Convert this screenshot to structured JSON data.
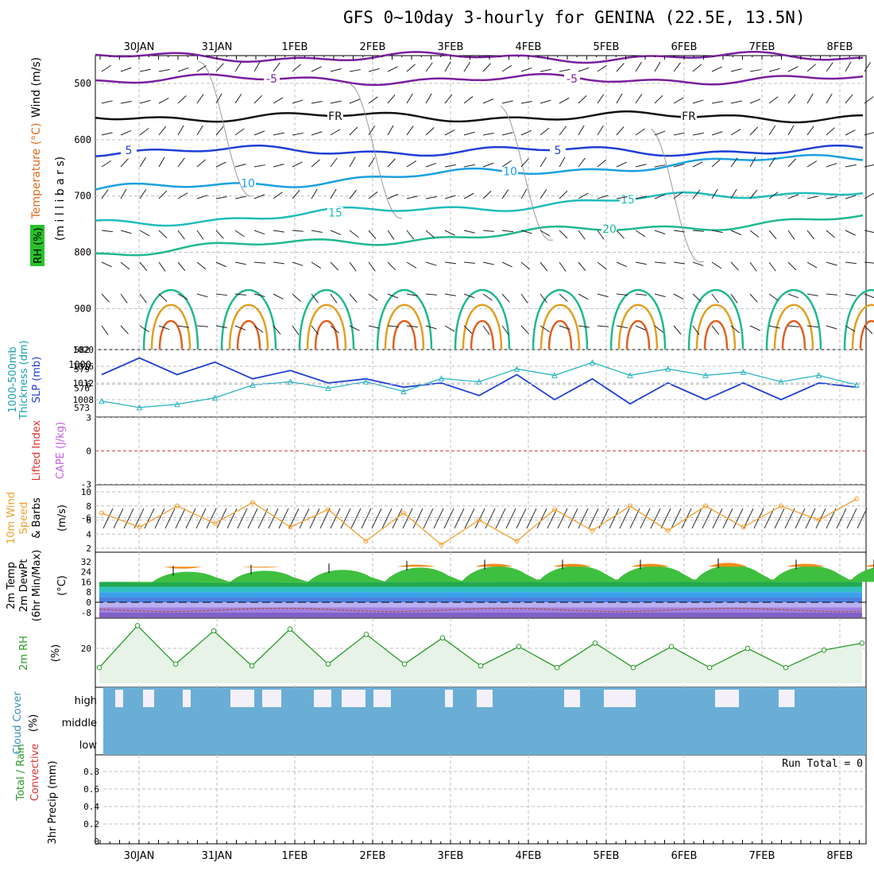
{
  "title": "GFS 0~10day 3-hourly for GENINA (22.5E, 13.5N)",
  "dates": [
    "30JAN",
    "31JAN",
    "1FEB",
    "2FEB",
    "3FEB",
    "4FEB",
    "5FEB",
    "6FEB",
    "7FEB",
    "8FEB"
  ],
  "colors": {
    "grid": "#bfbfbf",
    "sea_level_pressure": "#1f3fd6",
    "thickness": "#2bb5c2",
    "wind10m": "#f0a030",
    "rh": "#2a9a2a",
    "cloud": "#6aaed6",
    "li_zero": "#e04040"
  },
  "panels": {
    "upper": {
      "labels": [
        "Wind (m/s)",
        "Temperature (°C)",
        "RH (%)",
        "(m i l l i b a r s)"
      ],
      "pressure_ticks": [
        500,
        600,
        700,
        800,
        900,
        1000
      ],
      "contour_labels": [
        "-5",
        "FR",
        "5",
        "10",
        "15",
        "20"
      ]
    },
    "slp": {
      "labels": [
        "1000-500mb",
        "Thickness (dm)",
        "SLP (mb)"
      ],
      "ticks_left": [
        573,
        576,
        579,
        582
      ],
      "ticks_right": [
        1008,
        1012,
        1016,
        1020
      ]
    },
    "cape": {
      "labels": [
        "Lifted Index",
        "CAPE (J/kg)"
      ],
      "ticks": [
        6,
        3,
        0,
        -3,
        -6
      ]
    },
    "wind10m": {
      "labels": [
        "10m Wind",
        "Speed",
        "& Barbs",
        "(m/s)"
      ],
      "ticks": [
        2,
        4,
        6,
        8,
        10
      ]
    },
    "temp": {
      "labels": [
        "2m Temp",
        "2m DewPt",
        "(6hr Min/Max)",
        "(°C)"
      ],
      "ticks": [
        32,
        24,
        16,
        8,
        0,
        -8
      ]
    },
    "rh": {
      "labels": [
        "2m RH",
        "(%)"
      ],
      "ticks": [
        20
      ]
    },
    "cloud": {
      "labels": [
        "Cloud Cover",
        "(%)"
      ],
      "levels": [
        "high",
        "middle",
        "low"
      ]
    },
    "precip": {
      "labels": [
        "Total / Rain",
        "Convective",
        "3hr Precip (mm)"
      ],
      "ticks": [
        "0",
        "0.2",
        "0.4",
        "0.6",
        "0.8"
      ],
      "run_total": "Run Total = 0"
    }
  },
  "chart_data": [
    {
      "type": "line",
      "name": "sea_level_pressure",
      "x_unit": "days since 29JAN 12Z",
      "x": [
        0,
        0.5,
        1,
        1.5,
        2,
        2.5,
        3,
        3.5,
        4,
        4.5,
        5,
        5.5,
        6,
        6.5,
        7,
        7.5,
        8,
        8.5,
        9,
        9.5,
        10
      ],
      "series": [
        {
          "name": "SLP (mb)",
          "values": [
            1014,
            1018,
            1014,
            1017,
            1013,
            1015,
            1012,
            1013,
            1011,
            1012,
            1009,
            1014,
            1008,
            1013,
            1007,
            1012,
            1008,
            1012,
            1008,
            1012,
            1011
          ]
        },
        {
          "name": "1000-500mb Thickness (dm)",
          "values": [
            574,
            573,
            573.5,
            574.5,
            576.5,
            577,
            576,
            577,
            575.5,
            577.5,
            577,
            579,
            578,
            580,
            578,
            579,
            578,
            578.5,
            577,
            578,
            576.5
          ]
        }
      ]
    },
    {
      "type": "line",
      "name": "wind10m_speed",
      "x": [
        0,
        0.5,
        1,
        1.5,
        2,
        2.5,
        3,
        3.5,
        4,
        4.5,
        5,
        5.5,
        6,
        6.5,
        7,
        7.5,
        8,
        8.5,
        9,
        9.5,
        10
      ],
      "ylim": [
        2,
        10
      ],
      "series": [
        {
          "name": "10m Wind Speed",
          "values": [
            7,
            5,
            8,
            5.5,
            8.5,
            5,
            7.5,
            3,
            7,
            2.5,
            6,
            3,
            7.5,
            4.5,
            8,
            4.5,
            8,
            5,
            8,
            6,
            9
          ]
        }
      ]
    },
    {
      "type": "area",
      "name": "temperature_2m",
      "ylim": [
        -12,
        36
      ],
      "series": [
        {
          "name": "2m Temp (max)",
          "values": [
            26,
            27,
            28,
            30,
            31,
            31,
            31,
            32,
            31,
            31
          ]
        },
        {
          "name": "2m Temp (min)",
          "values": [
            14,
            14,
            14,
            15,
            16,
            17,
            17,
            17,
            17,
            17
          ]
        },
        {
          "name": "2m DewPt",
          "values": [
            -6,
            -5,
            -5,
            -6,
            -7,
            -6,
            -7,
            -6,
            -7,
            -6
          ]
        }
      ]
    },
    {
      "type": "area",
      "name": "rh_2m",
      "x": [
        0,
        0.5,
        1,
        1.5,
        2,
        2.5,
        3,
        3.5,
        4,
        4.5,
        5,
        5.5,
        6,
        6.5,
        7,
        7.5,
        8,
        8.5,
        9,
        9.5,
        10
      ],
      "ylim": [
        0,
        36
      ],
      "series": [
        {
          "name": "2m RH (%)",
          "values": [
            9,
            33,
            11,
            30,
            10,
            31,
            11,
            28,
            11,
            26,
            10,
            21,
            9,
            23,
            9,
            21,
            9,
            20,
            9,
            19,
            23
          ]
        }
      ]
    },
    {
      "type": "bar",
      "name": "precip_3hr",
      "ylim": [
        0,
        1
      ],
      "series": [
        {
          "name": "3hr Precip (mm)",
          "values": [
            0,
            0,
            0,
            0,
            0,
            0,
            0,
            0,
            0,
            0
          ]
        }
      ]
    }
  ]
}
